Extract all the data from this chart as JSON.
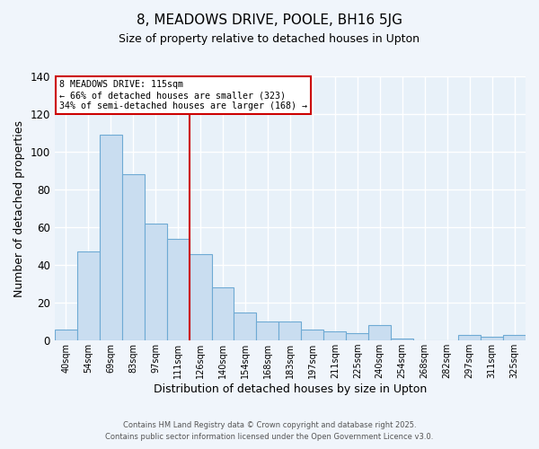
{
  "title": "8, MEADOWS DRIVE, POOLE, BH16 5JG",
  "subtitle": "Size of property relative to detached houses in Upton",
  "xlabel": "Distribution of detached houses by size in Upton",
  "ylabel": "Number of detached properties",
  "categories": [
    "40sqm",
    "54sqm",
    "69sqm",
    "83sqm",
    "97sqm",
    "111sqm",
    "126sqm",
    "140sqm",
    "154sqm",
    "168sqm",
    "183sqm",
    "197sqm",
    "211sqm",
    "225sqm",
    "240sqm",
    "254sqm",
    "268sqm",
    "282sqm",
    "297sqm",
    "311sqm",
    "325sqm"
  ],
  "values": [
    6,
    47,
    109,
    88,
    62,
    54,
    46,
    28,
    15,
    10,
    10,
    6,
    5,
    4,
    8,
    1,
    0,
    0,
    3,
    2,
    3
  ],
  "bar_color": "#c9ddf0",
  "bar_edge_color": "#6eaad4",
  "ylim": [
    0,
    140
  ],
  "yticks": [
    0,
    20,
    40,
    60,
    80,
    100,
    120,
    140
  ],
  "vline_x": 5.5,
  "vline_color": "#cc0000",
  "annotation_line1": "8 MEADOWS DRIVE: 115sqm",
  "annotation_line2": "← 66% of detached houses are smaller (323)",
  "annotation_line3": "34% of semi-detached houses are larger (168) →",
  "annotation_box_color": "#cc0000",
  "footer_line1": "Contains HM Land Registry data © Crown copyright and database right 2025.",
  "footer_line2": "Contains public sector information licensed under the Open Government Licence v3.0.",
  "background_color": "#f0f5fb",
  "plot_bg_color": "#e8f1f9"
}
